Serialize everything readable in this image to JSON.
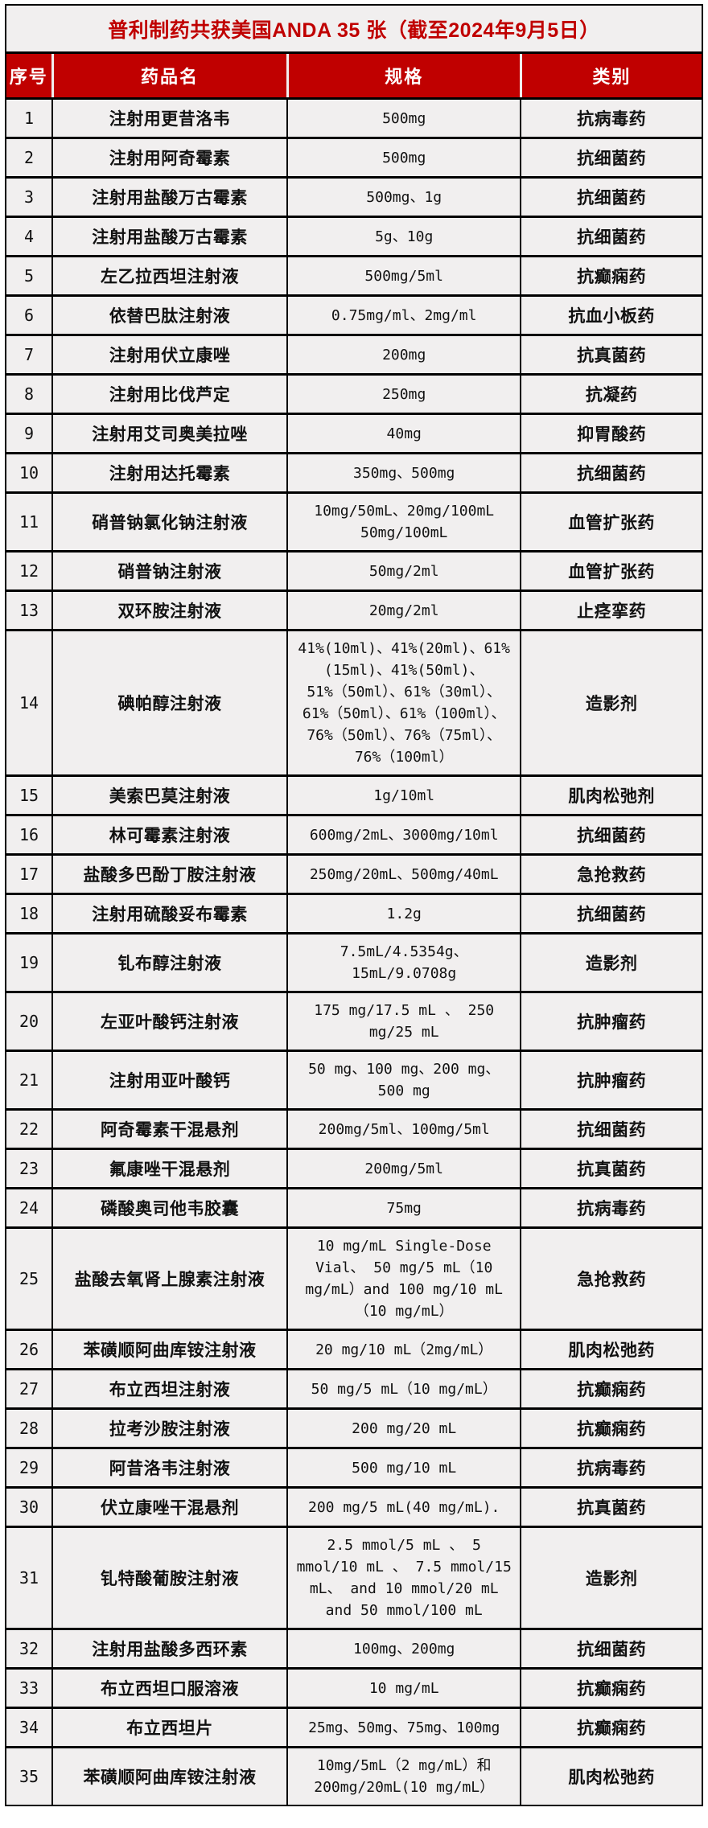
{
  "title": "普利制药共获美国ANDA 35 张（截至2024年9月5日）",
  "accent_color": "#c00000",
  "row_background": "#f1efef",
  "table": {
    "headers": {
      "no": "序号",
      "name": "药品名",
      "spec": "规格",
      "category": "类别"
    },
    "rows": [
      {
        "no": "1",
        "name": "注射用更昔洛韦",
        "spec": "500mg",
        "category": "抗病毒药"
      },
      {
        "no": "2",
        "name": "注射用阿奇霉素",
        "spec": "500mg",
        "category": "抗细菌药"
      },
      {
        "no": "3",
        "name": "注射用盐酸万古霉素",
        "spec": "500mg、1g",
        "category": "抗细菌药"
      },
      {
        "no": "4",
        "name": "注射用盐酸万古霉素",
        "spec": "5g、10g",
        "category": "抗细菌药"
      },
      {
        "no": "5",
        "name": "左乙拉西坦注射液",
        "spec": "500mg/5ml",
        "category": "抗癫痫药"
      },
      {
        "no": "6",
        "name": "依替巴肽注射液",
        "spec": "0.75mg/ml、2mg/ml",
        "category": "抗血小板药"
      },
      {
        "no": "7",
        "name": "注射用伏立康唑",
        "spec": "200mg",
        "category": "抗真菌药"
      },
      {
        "no": "8",
        "name": "注射用比伐芦定",
        "spec": "250mg",
        "category": "抗凝药"
      },
      {
        "no": "9",
        "name": "注射用艾司奥美拉唑",
        "spec": "40mg",
        "category": "抑胃酸药"
      },
      {
        "no": "10",
        "name": "注射用达托霉素",
        "spec": "350mg、500mg",
        "category": "抗细菌药"
      },
      {
        "no": "11",
        "name": "硝普钠氯化钠注射液",
        "spec": "10mg/50mL、20mg/100mL 50mg/100mL",
        "category": "血管扩张药"
      },
      {
        "no": "12",
        "name": "硝普钠注射液",
        "spec": "50mg/2ml",
        "category": "血管扩张药"
      },
      {
        "no": "13",
        "name": "双环胺注射液",
        "spec": "20mg/2ml",
        "category": "止痉挛药"
      },
      {
        "no": "14",
        "name": "碘帕醇注射液",
        "spec": "41%(10ml)、41%(20ml)、61%(15ml)、41%(50ml)、51%（50ml）、61%（30ml）、61%（50ml）、61%（100ml）、76%（50ml）、76%（75ml）、76%（100ml）",
        "category": "造影剂"
      },
      {
        "no": "15",
        "name": "美索巴莫注射液",
        "spec": "1g/10ml",
        "category": "肌肉松弛剂"
      },
      {
        "no": "16",
        "name": "林可霉素注射液",
        "spec": "600mg/2mL、3000mg/10ml",
        "category": "抗细菌药"
      },
      {
        "no": "17",
        "name": "盐酸多巴酚丁胺注射液",
        "spec": "250mg/20mL、500mg/40mL",
        "category": "急抢救药"
      },
      {
        "no": "18",
        "name": "注射用硫酸妥布霉素",
        "spec": "1.2g",
        "category": "抗细菌药"
      },
      {
        "no": "19",
        "name": "钆布醇注射液",
        "spec": "7.5mL/4.5354g、 15mL/9.0708g",
        "category": "造影剂"
      },
      {
        "no": "20",
        "name": "左亚叶酸钙注射液",
        "spec": "175 mg/17.5 mL 、 250 mg/25 mL",
        "category": "抗肿瘤药"
      },
      {
        "no": "21",
        "name": "注射用亚叶酸钙",
        "spec": "50 mg、100 mg、200 mg、 500 mg",
        "category": "抗肿瘤药"
      },
      {
        "no": "22",
        "name": "阿奇霉素干混悬剂",
        "spec": "200mg/5ml、100mg/5ml",
        "category": "抗细菌药"
      },
      {
        "no": "23",
        "name": "氟康唑干混悬剂",
        "spec": "200mg/5ml",
        "category": "抗真菌药"
      },
      {
        "no": "24",
        "name": "磷酸奥司他韦胶囊",
        "spec": "75mg",
        "category": "抗病毒药"
      },
      {
        "no": "25",
        "name": "盐酸去氧肾上腺素注射液",
        "spec": "10 mg/mL Single-Dose Vial、 50 mg/5 mL（10 mg/mL）and 100 mg/10 mL（10 mg/mL）",
        "category": "急抢救药"
      },
      {
        "no": "26",
        "name": "苯磺顺阿曲库铵注射液",
        "spec": "20 mg/10 mL（2mg/mL）",
        "category": "肌肉松弛药"
      },
      {
        "no": "27",
        "name": "布立西坦注射液",
        "spec": "50 mg/5 mL（10 mg/mL）",
        "category": "抗癫痫药"
      },
      {
        "no": "28",
        "name": "拉考沙胺注射液",
        "spec": "200 mg/20 mL",
        "category": "抗癫痫药"
      },
      {
        "no": "29",
        "name": "阿昔洛韦注射液",
        "spec": "500 mg/10 mL",
        "category": "抗病毒药"
      },
      {
        "no": "30",
        "name": "伏立康唑干混悬剂",
        "spec": "200 mg/5 mL(40 mg/mL).",
        "category": "抗真菌药"
      },
      {
        "no": "31",
        "name": "钆特酸葡胺注射液",
        "spec": "2.5 mmol/5 mL 、 5 mmol/10 mL 、 7.5 mmol/15 mL、 and 10 mmol/20 mL and 50 mmol/100 mL",
        "category": "造影剂"
      },
      {
        "no": "32",
        "name": "注射用盐酸多西环素",
        "spec": "100mg、200mg",
        "category": "抗细菌药"
      },
      {
        "no": "33",
        "name": "布立西坦口服溶液",
        "spec": "10 mg/mL",
        "category": "抗癫痫药"
      },
      {
        "no": "34",
        "name": "布立西坦片",
        "spec": "25mg、50mg、75mg、100mg",
        "category": "抗癫痫药"
      },
      {
        "no": "35",
        "name": "苯磺顺阿曲库铵注射液",
        "spec": "10mg/5mL（2 mg/mL）和 200mg/20mL(10 mg/mL）",
        "category": "肌肉松弛药"
      }
    ]
  }
}
